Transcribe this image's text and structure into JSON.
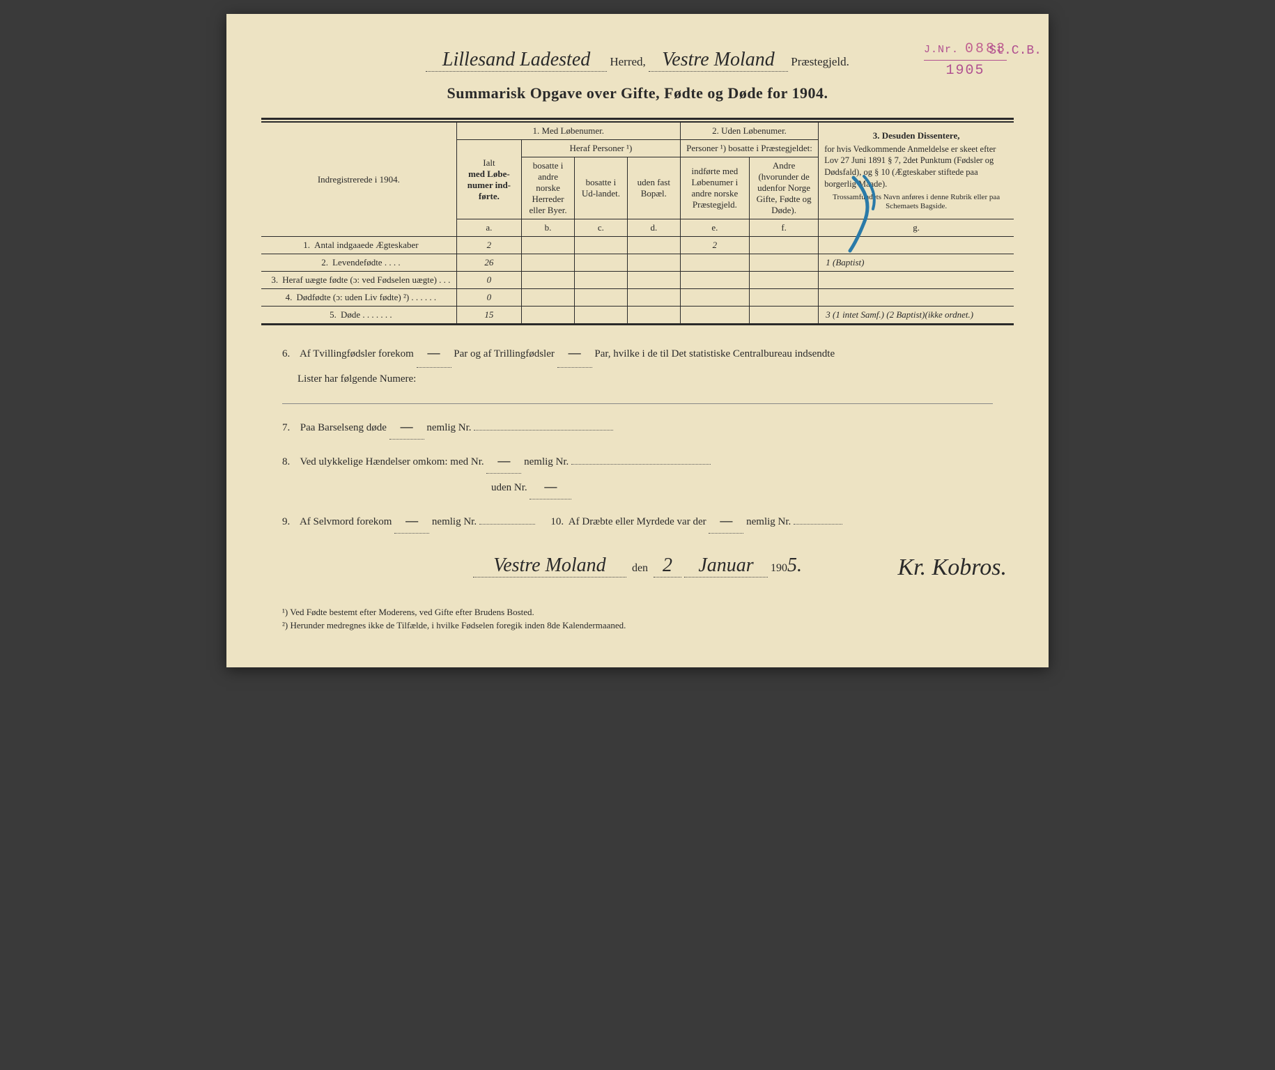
{
  "colors": {
    "paper": "#ede3c3",
    "ink": "#2a2a2a",
    "stamp": "#b05090",
    "blue_pencil": "#2a7aa8"
  },
  "stamp": {
    "prefix": "J.Nr.",
    "number": "0883",
    "suffix": "St.C.B.",
    "year": "1905"
  },
  "header": {
    "herred_hand": "Lillesand Ladested",
    "herred_label": "Herred,",
    "praeste_hand": "Vestre Moland",
    "praeste_label": "Præstegjeld."
  },
  "title": "Summarisk Opgave over Gifte, Fødte og Døde for 1904.",
  "table": {
    "col_indreg": "Indregistrerede i 1904.",
    "group1": "1.  Med Løbenumer.",
    "group2": "2. Uden Løbenumer.",
    "group3_title": "3.  Desuden Dissentere,",
    "group3_body": "for hvis Vedkommende Anmeldelse er skeet efter Lov 27 Juni 1891 § 7, 2det Punktum (Fødsler og Dødsfald), og § 10 (Ægteskaber stiftede paa borgerlig Maade).",
    "group3_small": "Trossamfundets Navn anføres i denne Rubrik eller paa Schemaets Bagside.",
    "heraf": "Heraf Personer ¹)",
    "personer2": "Personer ¹) bosatte i Præstegjeldet:",
    "col_a_1": "Ialt",
    "col_a_2": "med Løbe-numer ind-førte.",
    "col_b": "bosatte i andre norske Herreder eller Byer.",
    "col_c": "bosatte i Ud-landet.",
    "col_d": "uden fast Bopæl.",
    "col_e": "indførte med Løbenumer i andre norske Præstegjeld.",
    "col_f": "Andre (hvorunder de udenfor Norge Gifte, Fødte og Døde).",
    "letters": {
      "a": "a.",
      "b": "b.",
      "c": "c.",
      "d": "d.",
      "e": "e.",
      "f": "f.",
      "g": "g."
    },
    "rows": [
      {
        "n": "1.",
        "label": "Antal indgaaede Ægteskaber",
        "a": "2",
        "b": "",
        "c": "",
        "d": "",
        "e": "2",
        "f": "",
        "g": ""
      },
      {
        "n": "2.",
        "label": "Levendefødte  .  .  .  .",
        "a": "26",
        "b": "",
        "c": "",
        "d": "",
        "e": "",
        "f": "",
        "g": "1 (Baptist)"
      },
      {
        "n": "3.",
        "label": "Heraf uægte fødte (ɔ: ved Fødselen uægte)  .  .  .",
        "a": "0",
        "b": "",
        "c": "",
        "d": "",
        "e": "",
        "f": "",
        "g": ""
      },
      {
        "n": "4.",
        "label": "Dødfødte (ɔ: uden Liv fødte) ²)  .  .  .  .  .  .",
        "a": "0",
        "b": "",
        "c": "",
        "d": "",
        "e": "",
        "f": "",
        "g": ""
      },
      {
        "n": "5.",
        "label": "Døde  .  .  .  .  .  .  .",
        "a": "15",
        "b": "",
        "c": "",
        "d": "",
        "e": "",
        "f": "",
        "g": "3 (1 intet Samf.) (2 Baptist)(ikke ordnet.)"
      }
    ]
  },
  "section6": {
    "n": "6.",
    "text1": "Af Tvillingfødsler forekom",
    "val1": "—",
    "text2": "Par og af Trillingfødsler",
    "val2": "—",
    "text3": "Par, hvilke i de til Det statistiske Centralbureau indsendte",
    "text4": "Lister har følgende Numere:"
  },
  "section7": {
    "n": "7.",
    "text": "Paa Barselseng døde",
    "val": "—",
    "text2": "nemlig Nr."
  },
  "section8": {
    "n": "8.",
    "text": "Ved ulykkelige Hændelser omkom:  med Nr.",
    "val1": "—",
    "text2": "nemlig Nr.",
    "text3": "uden Nr.",
    "val2": "—"
  },
  "section9": {
    "n": "9.",
    "text": "Af Selvmord forekom",
    "val": "—",
    "text2": "nemlig Nr.",
    "n10": "10.",
    "text10": "Af Dræbte eller Myrdede var der",
    "val10": "—",
    "text10b": "nemlig Nr."
  },
  "signature": {
    "place": "Vestre Moland",
    "den": "den",
    "day": "2",
    "month": "Januar",
    "year_prefix": "190",
    "year_suffix": "5.",
    "name": "Kr. Kobros."
  },
  "footnotes": {
    "f1": "¹) Ved Fødte bestemt efter Moderens, ved Gifte efter Brudens Bosted.",
    "f2": "²) Herunder medregnes ikke de Tilfælde, i hvilke Fødselen foregik inden 8de Kalendermaaned."
  }
}
